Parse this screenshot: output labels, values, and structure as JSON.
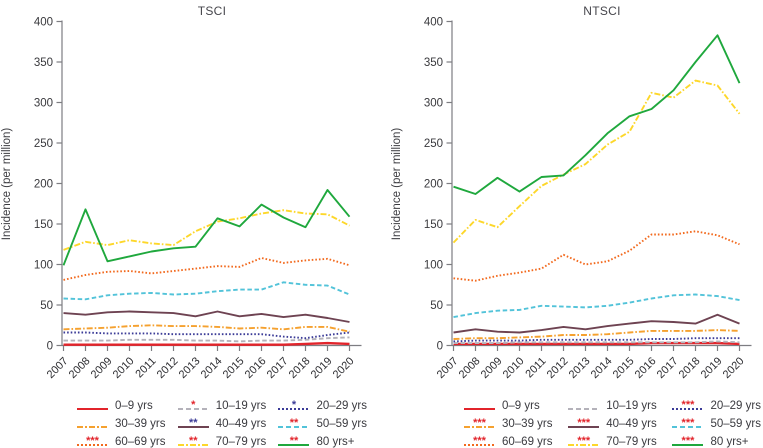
{
  "figure": {
    "background": "#ffffff",
    "axis_color": "#7d7d82",
    "tick_label_color": "#39393d",
    "title_color": "#46464c",
    "years": [
      "2007",
      "2008",
      "2009",
      "2010",
      "2011",
      "2012",
      "2013",
      "2014",
      "2015",
      "2016",
      "2017",
      "2018",
      "2019",
      "2020"
    ],
    "y_ticks": [
      0,
      50,
      100,
      150,
      200,
      250,
      300,
      350,
      400
    ]
  },
  "chart_data": [
    {
      "type": "line",
      "id": "tsci",
      "title": "TSCI",
      "ylabel": "Incidence (per million)",
      "xlabel": "",
      "ylim": [
        0,
        400
      ],
      "grid": false,
      "legend_position": "bottom",
      "categories": [
        "2007",
        "2008",
        "2009",
        "2010",
        "2011",
        "2012",
        "2013",
        "2014",
        "2015",
        "2016",
        "2017",
        "2018",
        "2019",
        "2020"
      ],
      "series": [
        {
          "name": "0–9 yrs",
          "color": "#e2242b",
          "style": "solid",
          "sig": "",
          "sig_color": "#e2242b",
          "values": [
            1,
            1,
            1,
            1,
            1,
            1,
            1,
            1,
            1,
            1,
            1,
            2,
            3,
            2
          ]
        },
        {
          "name": "10–19 yrs",
          "color": "#b4b2ba",
          "style": "dashed",
          "sig": "*",
          "sig_color": "#e2242b",
          "values": [
            6,
            6,
            6,
            7,
            7,
            7,
            6,
            6,
            5,
            6,
            6,
            7,
            9,
            10
          ]
        },
        {
          "name": "20–29 yrs",
          "color": "#3b3b97",
          "style": "dotted",
          "sig": "*",
          "sig_color": "#3b3b97",
          "values": [
            16,
            16,
            15,
            15,
            15,
            14,
            14,
            14,
            14,
            14,
            11,
            9,
            13,
            16
          ]
        },
        {
          "name": "30–39 yrs",
          "color": "#f5a12f",
          "style": "dashdot",
          "sig": "",
          "sig_color": "#e2242b",
          "values": [
            20,
            21,
            22,
            24,
            25,
            24,
            24,
            23,
            21,
            22,
            20,
            23,
            23,
            17
          ]
        },
        {
          "name": "40–49 yrs",
          "color": "#6e4352",
          "style": "solid",
          "sig": "**",
          "sig_color": "#3b3b97",
          "values": [
            40,
            38,
            41,
            42,
            41,
            40,
            36,
            42,
            36,
            39,
            35,
            38,
            34,
            29
          ]
        },
        {
          "name": "50–59 yrs",
          "color": "#52c3d9",
          "style": "dashed",
          "sig": "**",
          "sig_color": "#e2242b",
          "values": [
            58,
            57,
            62,
            64,
            65,
            63,
            64,
            67,
            69,
            69,
            78,
            75,
            74,
            63
          ]
        },
        {
          "name": "60–69 yrs",
          "color": "#f2691d",
          "style": "dotted",
          "sig": "***",
          "sig_color": "#e2242b",
          "values": [
            81,
            87,
            91,
            92,
            89,
            92,
            95,
            98,
            97,
            108,
            102,
            105,
            107,
            99
          ]
        },
        {
          "name": "70–79 yrs",
          "color": "#fdd72a",
          "style": "dashdot",
          "sig": "**",
          "sig_color": "#e2242b",
          "values": [
            118,
            128,
            124,
            130,
            126,
            124,
            141,
            153,
            157,
            163,
            167,
            163,
            162,
            148
          ]
        },
        {
          "name": "80 yrs+",
          "color": "#1fa83d",
          "style": "solid",
          "sig": "**",
          "sig_color": "#e2242b",
          "values": [
            99,
            168,
            104,
            110,
            116,
            120,
            122,
            157,
            147,
            174,
            158,
            146,
            192,
            159
          ]
        }
      ]
    },
    {
      "type": "line",
      "id": "ntsci",
      "title": "NTSCI",
      "ylabel": "Incidence (per million)",
      "xlabel": "",
      "ylim": [
        0,
        400
      ],
      "grid": false,
      "legend_position": "bottom",
      "categories": [
        "2007",
        "2008",
        "2009",
        "2010",
        "2011",
        "2012",
        "2013",
        "2014",
        "2015",
        "2016",
        "2017",
        "2018",
        "2019",
        "2020"
      ],
      "series": [
        {
          "name": "0–9 yrs",
          "color": "#e2242b",
          "style": "solid",
          "sig": "",
          "sig_color": "#e2242b",
          "values": [
            2,
            2,
            2,
            2,
            2,
            2,
            2,
            2,
            2,
            3,
            3,
            3,
            3,
            2
          ]
        },
        {
          "name": "10–19 yrs",
          "color": "#b4b2ba",
          "style": "dashed",
          "sig": "",
          "sig_color": "#e2242b",
          "values": [
            3,
            3,
            3,
            4,
            4,
            4,
            4,
            4,
            4,
            4,
            4,
            4,
            5,
            4
          ]
        },
        {
          "name": "20–29 yrs",
          "color": "#3b3b97",
          "style": "dotted",
          "sig": "***",
          "sig_color": "#e2242b",
          "values": [
            5,
            6,
            6,
            6,
            7,
            7,
            7,
            7,
            7,
            8,
            8,
            9,
            9,
            9
          ]
        },
        {
          "name": "30–39 yrs",
          "color": "#f5a12f",
          "style": "dashdot",
          "sig": "***",
          "sig_color": "#e2242b",
          "values": [
            8,
            9,
            9,
            10,
            11,
            13,
            13,
            14,
            16,
            18,
            18,
            18,
            19,
            18
          ]
        },
        {
          "name": "40–49 yrs",
          "color": "#6e4352",
          "style": "solid",
          "sig": "***",
          "sig_color": "#e2242b",
          "values": [
            16,
            20,
            17,
            16,
            19,
            23,
            20,
            24,
            27,
            30,
            29,
            27,
            38,
            27
          ]
        },
        {
          "name": "50–59 yrs",
          "color": "#52c3d9",
          "style": "dashed",
          "sig": "***",
          "sig_color": "#e2242b",
          "values": [
            35,
            40,
            43,
            44,
            49,
            48,
            47,
            49,
            53,
            58,
            62,
            63,
            61,
            56
          ]
        },
        {
          "name": "60–69 yrs",
          "color": "#f2691d",
          "style": "dotted",
          "sig": "***",
          "sig_color": "#e2242b",
          "values": [
            83,
            80,
            86,
            90,
            95,
            112,
            100,
            104,
            117,
            137,
            137,
            141,
            136,
            125
          ]
        },
        {
          "name": "70–79 yrs",
          "color": "#fdd72a",
          "style": "dashdot",
          "sig": "***",
          "sig_color": "#e2242b",
          "values": [
            127,
            155,
            146,
            172,
            197,
            211,
            224,
            248,
            264,
            312,
            306,
            327,
            321,
            286
          ]
        },
        {
          "name": "80 yrs+",
          "color": "#1fa83d",
          "style": "solid",
          "sig": "***",
          "sig_color": "#e2242b",
          "values": [
            196,
            187,
            207,
            190,
            208,
            210,
            235,
            262,
            283,
            292,
            315,
            350,
            383,
            324
          ]
        }
      ]
    }
  ]
}
